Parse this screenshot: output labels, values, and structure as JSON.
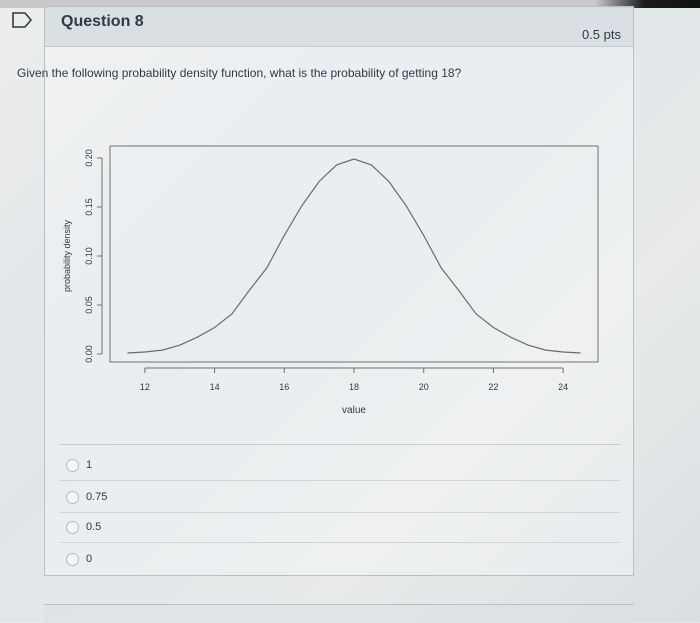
{
  "question": {
    "title": "Question 8",
    "points": "0.5 pts",
    "text": "Given the following probability density function, what is the probability of getting 18?"
  },
  "icons": {
    "flag": "bookmark-flag-icon"
  },
  "answers": [
    {
      "label": "1",
      "selected": false
    },
    {
      "label": "0.75",
      "selected": false
    },
    {
      "label": "0.5",
      "selected": false
    },
    {
      "label": "0",
      "selected": false
    }
  ],
  "chart_data": {
    "type": "line",
    "title": "",
    "xlabel": "value",
    "ylabel": "probability density",
    "xlim": [
      11,
      25
    ],
    "ylim": [
      0,
      0.2
    ],
    "x_ticks": [
      12,
      14,
      16,
      18,
      20,
      22,
      24
    ],
    "x_tick_labels": [
      "12",
      "14",
      "16",
      "18",
      "20",
      "22",
      "24"
    ],
    "y_ticks": [
      0.0,
      0.05,
      0.1,
      0.15,
      0.2
    ],
    "y_tick_labels": [
      "0.00",
      "0.05",
      "0.10",
      "0.15",
      "0.20"
    ],
    "series": [
      {
        "x": [
          11.5,
          12,
          12.5,
          13,
          13.5,
          14,
          14.5,
          15,
          15.5,
          16,
          16.5,
          17,
          17.5,
          18,
          18.5,
          19,
          19.5,
          20,
          20.5,
          21,
          21.5,
          22,
          22.5,
          23,
          23.5,
          24,
          24.5
        ],
        "y": [
          0.001,
          0.002,
          0.004,
          0.009,
          0.017,
          0.027,
          0.041,
          0.065,
          0.088,
          0.121,
          0.151,
          0.176,
          0.193,
          0.199,
          0.193,
          0.176,
          0.151,
          0.121,
          0.088,
          0.065,
          0.041,
          0.027,
          0.017,
          0.009,
          0.004,
          0.002,
          0.001
        ],
        "color": "#6b6b6b"
      }
    ],
    "grid": false,
    "legend": "none"
  }
}
